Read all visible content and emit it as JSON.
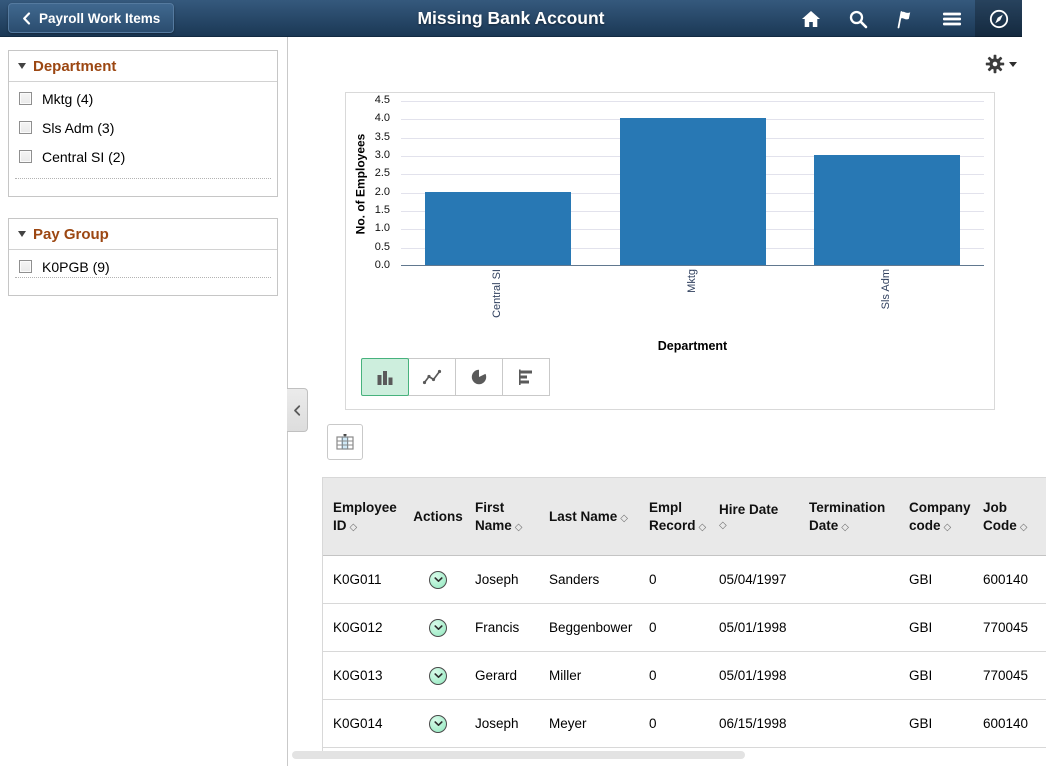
{
  "header": {
    "back_button": "Payroll Work Items",
    "title": "Missing Bank Account",
    "icons": [
      "home-icon",
      "search-icon",
      "flag-icon",
      "menu-icon",
      "navbar-icon"
    ]
  },
  "facets": [
    {
      "title": "Department",
      "items": [
        "Mktg (4)",
        "Sls Adm (3)",
        "Central SI (2)"
      ],
      "checked": [
        false,
        false,
        false
      ]
    },
    {
      "title": "Pay Group",
      "items": [
        "K0PGB (9)"
      ],
      "checked": [
        false
      ]
    }
  ],
  "chart_data": {
    "type": "bar",
    "categories": [
      "Central SI",
      "Mktg",
      "Sls Adm"
    ],
    "values": [
      2,
      4,
      3
    ],
    "title": "",
    "xlabel": "Department",
    "ylabel": "No. of Employees",
    "ylim": [
      0,
      4.5
    ],
    "ytick_step": 0.5,
    "grid": true,
    "legend": "none",
    "bar_color": "#2878b4"
  },
  "chart_toolbar": {
    "options": [
      {
        "icon": "bar-chart-icon",
        "selected": true
      },
      {
        "icon": "line-chart-icon",
        "selected": false
      },
      {
        "icon": "pie-chart-icon",
        "selected": false
      },
      {
        "icon": "horizontal-bar-chart-icon",
        "selected": false
      }
    ]
  },
  "table": {
    "sort_icon": "◇",
    "columns": [
      {
        "label": "Employee ID",
        "sortable": true
      },
      {
        "label": "Actions",
        "sortable": false
      },
      {
        "label": "First Name",
        "sortable": true
      },
      {
        "label": "Last Name",
        "sortable": true
      },
      {
        "label": "Empl Record",
        "sortable": true
      },
      {
        "label": "Hire Date",
        "sortable": true
      },
      {
        "label": "Termination Date",
        "sortable": true
      },
      {
        "label": "Company code",
        "sortable": true
      },
      {
        "label": "Job Code",
        "sortable": true
      }
    ],
    "rows": [
      {
        "employee_id": "K0G011",
        "first_name": "Joseph",
        "last_name": "Sanders",
        "empl_record": "0",
        "hire_date": "05/04/1997",
        "termination_date": "",
        "company_code": "GBI",
        "job_code": "600140"
      },
      {
        "employee_id": "K0G012",
        "first_name": "Francis",
        "last_name": "Beggenbower",
        "empl_record": "0",
        "hire_date": "05/01/1998",
        "termination_date": "",
        "company_code": "GBI",
        "job_code": "770045"
      },
      {
        "employee_id": "K0G013",
        "first_name": "Gerard",
        "last_name": "Miller",
        "empl_record": "0",
        "hire_date": "05/01/1998",
        "termination_date": "",
        "company_code": "GBI",
        "job_code": "770045"
      },
      {
        "employee_id": "K0G014",
        "first_name": "Joseph",
        "last_name": "Meyer",
        "empl_record": "0",
        "hire_date": "06/15/1998",
        "termination_date": "",
        "company_code": "GBI",
        "job_code": "600140"
      }
    ]
  },
  "colors": {
    "header_top": "#33597e",
    "header_bottom": "#1c3a58",
    "facet_title": "#9c4712",
    "bar": "#2878b4",
    "toggle_selected_bg": "#cdeedd",
    "toggle_selected_border": "#47b27d",
    "action_icon_fill": "#9deec6"
  }
}
